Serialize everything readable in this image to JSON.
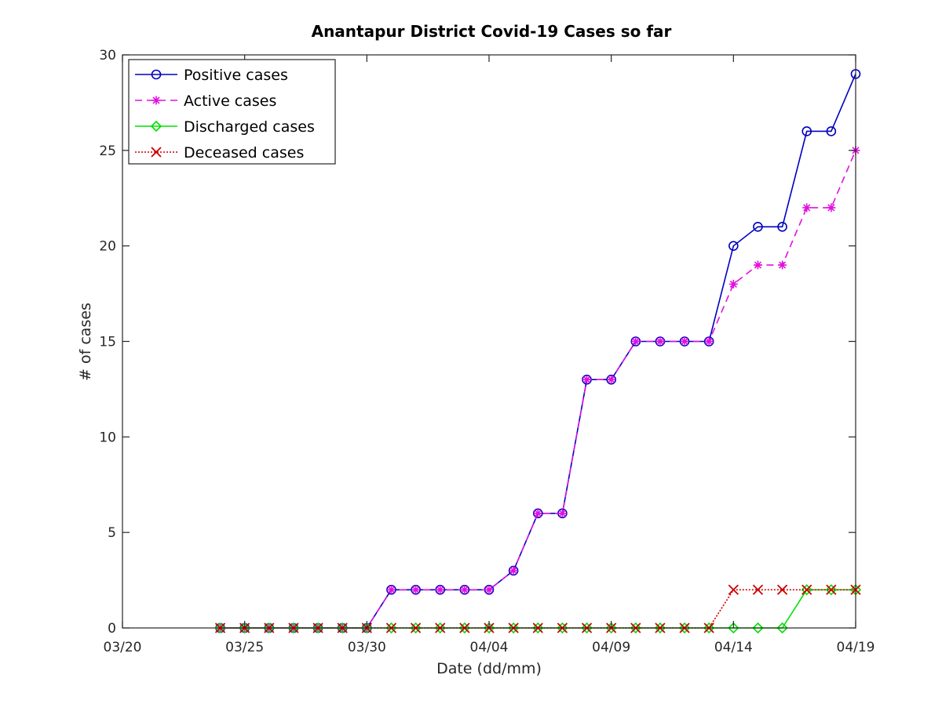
{
  "chart_data": {
    "type": "line",
    "title": "Anantapur District Covid-19 Cases so far",
    "xlabel": "Date (dd/mm)",
    "ylabel": "# of cases",
    "xlim": [
      "03/20",
      "04/19"
    ],
    "ylim": [
      0,
      30
    ],
    "x_ticks": [
      "03/20",
      "03/25",
      "03/30",
      "04/04",
      "04/09",
      "04/14",
      "04/19"
    ],
    "y_ticks": [
      0,
      5,
      10,
      15,
      20,
      25,
      30
    ],
    "grid": false,
    "legend_position": "top-left",
    "x": [
      "03/24",
      "03/25",
      "03/26",
      "03/27",
      "03/28",
      "03/29",
      "03/30",
      "03/31",
      "04/01",
      "04/02",
      "04/03",
      "04/04",
      "04/05",
      "04/06",
      "04/07",
      "04/08",
      "04/09",
      "04/10",
      "04/11",
      "04/12",
      "04/13",
      "04/14",
      "04/15",
      "04/16",
      "04/17",
      "04/18",
      "04/19"
    ],
    "series": [
      {
        "name": "Positive cases",
        "color": "#0000bf",
        "line_style": "solid",
        "marker": "circle",
        "values": [
          0,
          0,
          0,
          0,
          0,
          0,
          0,
          2,
          2,
          2,
          2,
          2,
          3,
          6,
          6,
          13,
          13,
          15,
          15,
          15,
          15,
          20,
          21,
          21,
          26,
          26,
          29
        ]
      },
      {
        "name": "Active cases",
        "color": "#e010e0",
        "line_style": "dashed",
        "marker": "asterisk",
        "values": [
          0,
          0,
          0,
          0,
          0,
          0,
          0,
          2,
          2,
          2,
          2,
          2,
          3,
          6,
          6,
          13,
          13,
          15,
          15,
          15,
          15,
          18,
          19,
          19,
          22,
          22,
          25
        ]
      },
      {
        "name": "Discharged cases",
        "color": "#00e000",
        "line_style": "solid",
        "marker": "diamond",
        "values": [
          0,
          0,
          0,
          0,
          0,
          0,
          0,
          0,
          0,
          0,
          0,
          0,
          0,
          0,
          0,
          0,
          0,
          0,
          0,
          0,
          0,
          0,
          0,
          0,
          2,
          2,
          2
        ]
      },
      {
        "name": "Deceased cases",
        "color": "#cc0000",
        "line_style": "dotted",
        "marker": "x",
        "values": [
          0,
          0,
          0,
          0,
          0,
          0,
          0,
          0,
          0,
          0,
          0,
          0,
          0,
          0,
          0,
          0,
          0,
          0,
          0,
          0,
          0,
          2,
          2,
          2,
          2,
          2,
          2
        ]
      }
    ]
  }
}
